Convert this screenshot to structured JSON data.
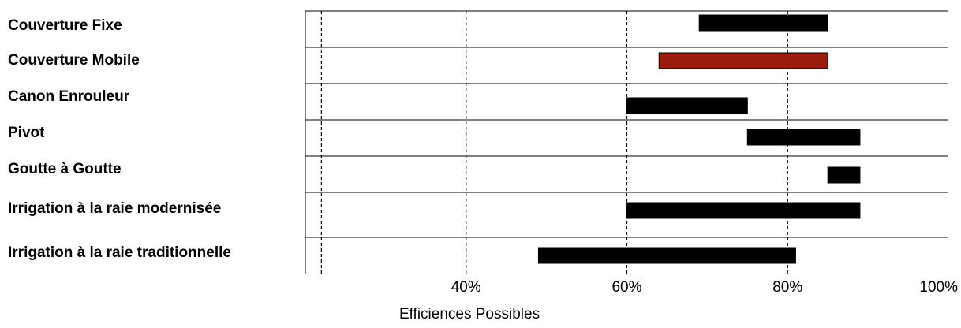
{
  "chart_data": {
    "type": "bar",
    "orientation": "horizontal-range",
    "xlabel": "Efficiences Possibles",
    "xlim": [
      0.2,
      1.0
    ],
    "xticks": [
      {
        "value": 0.4,
        "label": "40%"
      },
      {
        "value": 0.6,
        "label": "60%"
      },
      {
        "value": 0.8,
        "label": "80%"
      },
      {
        "value": 1.0,
        "label": "100%"
      }
    ],
    "grid": "vertical-dashed",
    "categories": [
      "Couverture Fixe",
      "Couverture Mobile",
      "Canon Enrouleur",
      "Pivot",
      "Goutte à Goutte",
      "Irrigation à la raie modernisée",
      "Irrigation à la raie traditionnelle"
    ],
    "ranges": [
      {
        "start": 0.69,
        "end": 0.85
      },
      {
        "start": 0.64,
        "end": 0.85
      },
      {
        "start": 0.6,
        "end": 0.75
      },
      {
        "start": 0.75,
        "end": 0.89
      },
      {
        "start": 0.85,
        "end": 0.89
      },
      {
        "start": 0.6,
        "end": 0.89
      },
      {
        "start": 0.49,
        "end": 0.81
      }
    ],
    "colors": [
      "#000000",
      "#9b1c0c",
      "#000000",
      "#000000",
      "#000000",
      "#000000",
      "#000000"
    ]
  }
}
